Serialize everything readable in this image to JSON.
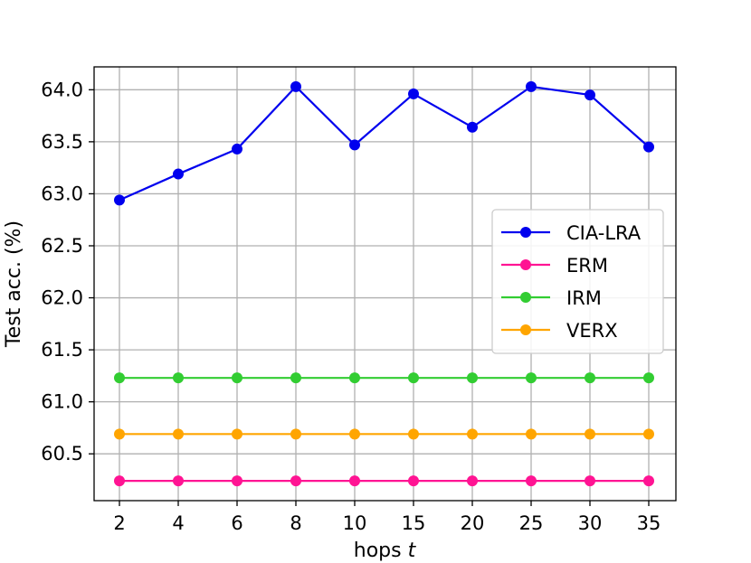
{
  "chart_data": {
    "type": "line",
    "title": "",
    "xlabel": "hops",
    "xlabel_var": "t",
    "ylabel": "Test acc. (%)",
    "categories": [
      "2",
      "4",
      "6",
      "8",
      "10",
      "15",
      "20",
      "25",
      "30",
      "35"
    ],
    "ylim": [
      60.05,
      64.22
    ],
    "yticks": [
      "60.5",
      "61.0",
      "61.5",
      "62.0",
      "62.5",
      "63.0",
      "63.5",
      "64.0"
    ],
    "grid": true,
    "legend_position": "center-right",
    "series": [
      {
        "name": "CIA-LRA",
        "color": "#0000ee",
        "values": [
          62.94,
          63.19,
          63.43,
          64.03,
          63.47,
          63.96,
          63.64,
          64.03,
          63.95,
          63.45
        ]
      },
      {
        "name": "ERM",
        "color": "#ff1493",
        "values": [
          60.24,
          60.24,
          60.24,
          60.24,
          60.24,
          60.24,
          60.24,
          60.24,
          60.24,
          60.24
        ]
      },
      {
        "name": "IRM",
        "color": "#32cd32",
        "values": [
          61.23,
          61.23,
          61.23,
          61.23,
          61.23,
          61.23,
          61.23,
          61.23,
          61.23,
          61.23
        ]
      },
      {
        "name": "VERX",
        "color": "#ffa500",
        "values": [
          60.69,
          60.69,
          60.69,
          60.69,
          60.69,
          60.69,
          60.69,
          60.69,
          60.69,
          60.69
        ]
      }
    ]
  }
}
